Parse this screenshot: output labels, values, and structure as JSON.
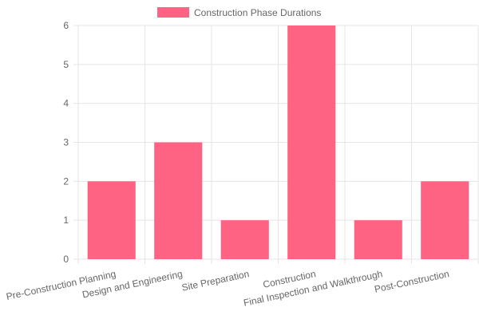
{
  "chart_data": {
    "type": "bar",
    "categories": [
      "Pre-Construction Planning",
      "Design and Engineering",
      "Site Preparation",
      "Construction",
      "Final Inspection and Walkthrough",
      "Post-Construction"
    ],
    "series": [
      {
        "name": "Construction Phase Durations",
        "values": [
          2,
          3,
          1,
          6,
          1,
          2
        ]
      }
    ],
    "ylim": [
      0,
      6
    ],
    "yticks": [
      "0",
      "1",
      "2",
      "3",
      "4",
      "5",
      "6"
    ],
    "grid": true,
    "legend_position": "top",
    "colors": {
      "bar_fill": "#ff6384",
      "grid": "#e5e5e5",
      "text": "#666666"
    }
  }
}
